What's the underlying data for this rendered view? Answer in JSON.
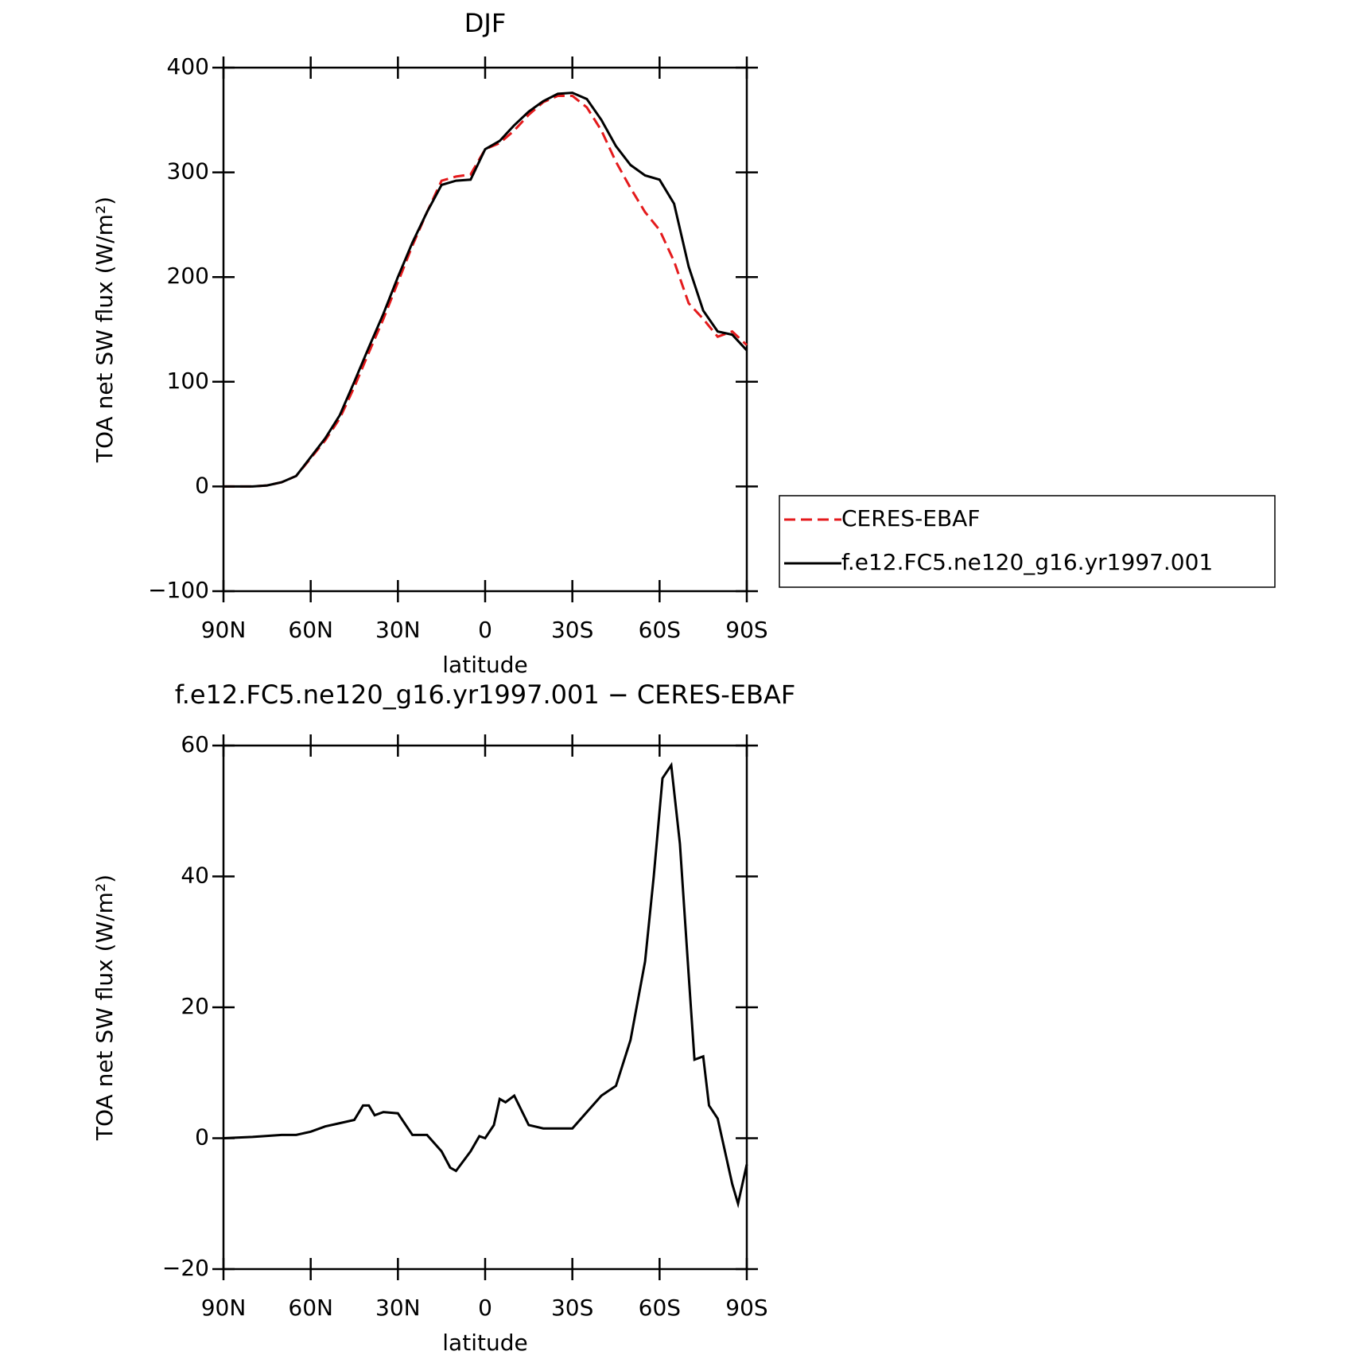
{
  "chart_data": [
    {
      "type": "line",
      "title": "DJF",
      "xlabel": "latitude",
      "ylabel": "TOA net SW flux (W/m²)",
      "x": [
        90,
        85,
        80,
        75,
        70,
        65,
        60,
        55,
        50,
        45,
        40,
        35,
        30,
        25,
        20,
        15,
        10,
        5,
        0,
        -5,
        -10,
        -15,
        -20,
        -25,
        -30,
        -35,
        -40,
        -45,
        -50,
        -55,
        -60,
        -65,
        -70,
        -75,
        -80,
        -85,
        -90
      ],
      "series": [
        {
          "name": "CERES-EBAF",
          "color": "#e41a1c",
          "style": "dashed",
          "values": [
            0,
            0,
            0,
            1,
            4,
            10,
            27,
            44,
            65,
            95,
            128,
            160,
            195,
            230,
            262,
            292,
            296,
            298,
            322,
            328,
            340,
            355,
            367,
            373,
            373,
            362,
            340,
            310,
            285,
            262,
            245,
            215,
            175,
            160,
            143,
            148,
            135
          ]
        },
        {
          "name": "f.e12.FC5.ne120_g16.yr1997.001",
          "color": "#000000",
          "style": "solid",
          "values": [
            0,
            0,
            0,
            1,
            4,
            10,
            28,
            46,
            68,
            100,
            133,
            165,
            200,
            233,
            262,
            288,
            292,
            293,
            322,
            330,
            345,
            358,
            368,
            375,
            376,
            370,
            350,
            325,
            307,
            297,
            293,
            270,
            210,
            168,
            148,
            145,
            130
          ]
        }
      ],
      "xlim": [
        90,
        -90
      ],
      "xticks": [
        {
          "value": 90,
          "label": "90N"
        },
        {
          "value": 60,
          "label": "60N"
        },
        {
          "value": 30,
          "label": "30N"
        },
        0,
        {
          "value": -30,
          "label": "30S"
        },
        {
          "value": -60,
          "label": "60S"
        },
        {
          "value": -90,
          "label": "90S"
        }
      ],
      "ylim": [
        -100,
        400
      ],
      "yticks": [
        {
          "value": -100,
          "label": "−100"
        },
        0,
        100,
        200,
        300,
        400
      ],
      "legend": "right"
    },
    {
      "type": "line",
      "title": "f.e12.FC5.ne120_g16.yr1997.001 − CERES-EBAF",
      "xlabel": "latitude",
      "ylabel": "TOA net SW flux (W/m²)",
      "x": [
        90,
        80,
        70,
        65,
        60,
        55,
        50,
        45,
        42,
        40,
        38,
        35,
        30,
        25,
        20,
        15,
        12,
        10,
        5,
        2,
        0,
        -3,
        -5,
        -7,
        -10,
        -15,
        -20,
        -25,
        -30,
        -35,
        -40,
        -45,
        -50,
        -55,
        -58,
        -61,
        -64,
        -67,
        -70,
        -72,
        -75,
        -77,
        -80,
        -85,
        -87,
        -90
      ],
      "series": [
        {
          "color": "#000000",
          "style": "solid",
          "values": [
            0,
            0.2,
            0.5,
            0.5,
            1,
            1.8,
            2.3,
            2.8,
            5,
            5,
            3.5,
            4,
            3.8,
            0.5,
            0.5,
            -2,
            -4.5,
            -5,
            -2,
            0.3,
            0,
            2,
            6,
            5.5,
            6.5,
            2,
            1.5,
            1.5,
            1.5,
            4,
            6.5,
            8,
            15,
            27,
            40,
            55,
            57,
            45,
            25,
            12,
            12.5,
            5,
            3,
            -7,
            -10,
            -4
          ]
        }
      ],
      "xlim": [
        90,
        -90
      ],
      "xticks": [
        {
          "value": 90,
          "label": "90N"
        },
        {
          "value": 60,
          "label": "60N"
        },
        {
          "value": 30,
          "label": "30N"
        },
        0,
        {
          "value": -30,
          "label": "30S"
        },
        {
          "value": -60,
          "label": "60S"
        },
        {
          "value": -90,
          "label": "90S"
        }
      ],
      "ylim": [
        -20,
        60
      ],
      "yticks": [
        {
          "value": -20,
          "label": "−20"
        },
        0,
        20,
        40,
        60
      ]
    }
  ]
}
